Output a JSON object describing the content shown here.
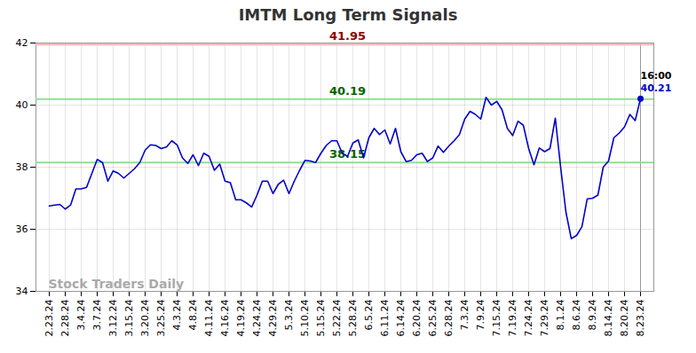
{
  "chart_data": {
    "type": "line",
    "title": "IMTM Long Term Signals",
    "color": "#0000cc",
    "grid": true,
    "ylim": [
      34,
      42
    ],
    "yticks": [
      34,
      36,
      38,
      40,
      42
    ],
    "categories": [
      "2.23.24",
      null,
      null,
      "2.28.24",
      null,
      null,
      "3.4.24",
      null,
      null,
      "3.7.24",
      null,
      null,
      "3.12.24",
      null,
      null,
      "3.15.24",
      null,
      null,
      "3.20.24",
      null,
      null,
      "3.25.24",
      null,
      null,
      "4.3.24",
      null,
      null,
      "4.8.24",
      null,
      null,
      "4.11.24",
      null,
      null,
      "4.16.24",
      null,
      null,
      "4.19.24",
      null,
      null,
      "4.24.24",
      null,
      null,
      "4.29.24",
      null,
      null,
      "5.3.24",
      null,
      null,
      "5.10.24",
      null,
      null,
      "5.15.24",
      null,
      null,
      "5.22.24",
      null,
      null,
      "5.28.24",
      null,
      null,
      "6.5.24",
      null,
      null,
      "6.11.24",
      null,
      null,
      "6.14.24",
      null,
      null,
      "6.20.24",
      null,
      null,
      "6.25.24",
      null,
      null,
      "6.28.24",
      null,
      null,
      "7.3.24",
      null,
      null,
      "7.9.24",
      null,
      null,
      "7.15.24",
      null,
      null,
      "7.19.24",
      null,
      null,
      "7.24.24",
      null,
      null,
      "7.29.24",
      null,
      null,
      "8.1.24",
      null,
      null,
      "8.6.24",
      null,
      null,
      "8.9.24",
      null,
      null,
      "8.14.24",
      null,
      null,
      "8.20.24",
      null,
      null,
      "8.23.24"
    ],
    "values": [
      36.75,
      36.78,
      36.8,
      36.65,
      36.78,
      37.3,
      37.3,
      37.35,
      37.8,
      38.25,
      38.15,
      37.55,
      37.88,
      37.8,
      37.65,
      37.8,
      37.95,
      38.15,
      38.55,
      38.72,
      38.7,
      38.6,
      38.65,
      38.85,
      38.72,
      38.3,
      38.12,
      38.4,
      38.05,
      38.45,
      38.35,
      37.9,
      38.1,
      37.55,
      37.5,
      36.95,
      36.95,
      36.85,
      36.72,
      37.1,
      37.55,
      37.55,
      37.15,
      37.45,
      37.58,
      37.15,
      37.55,
      37.9,
      38.22,
      38.2,
      38.15,
      38.45,
      38.7,
      38.85,
      38.85,
      38.45,
      38.35,
      38.78,
      38.88,
      38.3,
      38.95,
      39.25,
      39.05,
      39.2,
      38.75,
      39.25,
      38.5,
      38.18,
      38.22,
      38.4,
      38.45,
      38.18,
      38.3,
      38.68,
      38.48,
      38.68,
      38.85,
      39.05,
      39.55,
      39.8,
      39.7,
      39.55,
      40.25,
      40.0,
      40.12,
      39.85,
      39.25,
      39.02,
      39.48,
      39.35,
      38.6,
      38.08,
      38.62,
      38.5,
      38.6,
      39.58,
      38.0,
      36.55,
      35.7,
      35.8,
      36.08,
      36.98,
      37.0,
      37.1,
      38.0,
      38.2,
      38.95,
      39.1,
      39.3,
      39.7,
      39.5,
      40.21
    ],
    "reference_lines": [
      {
        "value": 41.95,
        "label": "41.95",
        "color": "#8b0000"
      },
      {
        "value": 40.19,
        "label": "40.19",
        "color": "#006400"
      },
      {
        "value": 38.15,
        "label": "38.15",
        "color": "#006400"
      }
    ],
    "last_point": {
      "time": "16:00",
      "value_label": "40.21"
    },
    "watermark": "Stock Traders Daily"
  }
}
